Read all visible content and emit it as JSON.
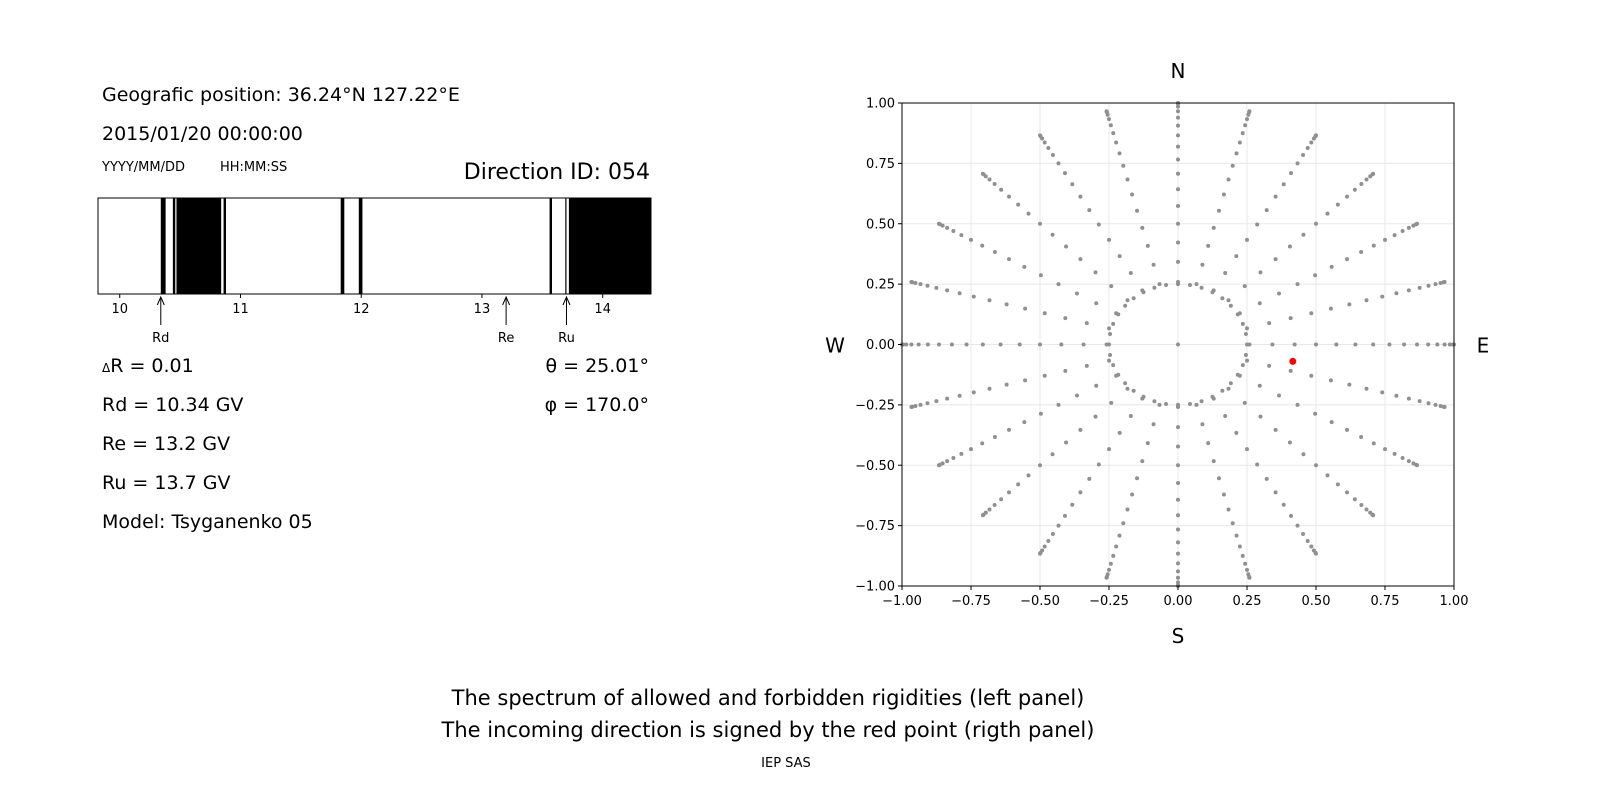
{
  "info": {
    "position": "Geografic position: 36.24°N 127.22°E",
    "datetime": "2015/01/20 00:00:00",
    "date_format": "YYYY/MM/DD",
    "time_format": "HH:MM:SS",
    "direction_id": "Direction ID: 054",
    "delta_r": "R = 0.01",
    "delta_symbol": "Δ",
    "rd": "Rd = 10.34 GV",
    "re": "Re = 13.2 GV",
    "ru": "Ru = 13.7 GV",
    "model": "Model: Tsyganenko 05",
    "theta": "θ = 25.01°",
    "phi": "φ = 170.0°"
  },
  "caption": {
    "line1": "The spectrum of allowed and forbidden rigidities (left panel)",
    "line2": "The incoming direction is signed by the red point (rigth panel)",
    "credit": "IEP SAS"
  },
  "chart_data": [
    {
      "type": "bar",
      "description_role": "rigidity spectrum",
      "xlim": [
        9.82,
        14.4
      ],
      "xticks": [
        10,
        11,
        12,
        13,
        14
      ],
      "forbidden_bands": [
        [
          10.34,
          10.38
        ],
        [
          10.44,
          10.46
        ],
        [
          10.47,
          10.84
        ],
        [
          10.86,
          10.88
        ],
        [
          11.83,
          11.86
        ],
        [
          11.98,
          12.01
        ],
        [
          13.56,
          13.58
        ],
        [
          13.69,
          13.7
        ],
        [
          13.72,
          14.4
        ]
      ],
      "markers": [
        {
          "label": "Rd",
          "value": 10.34
        },
        {
          "label": "Re",
          "value": 13.2
        },
        {
          "label": "Ru",
          "value": 13.7
        }
      ],
      "colors": {
        "forbidden": "#000000",
        "allowed": "#ffffff"
      }
    },
    {
      "type": "scatter",
      "description_role": "direction map",
      "xlim": [
        -1.0,
        1.0
      ],
      "ylim": [
        -1.0,
        1.0
      ],
      "xticks": [
        "−1.00",
        "−0.75",
        "−0.50",
        "−0.25",
        "0.00",
        "0.25",
        "0.50",
        "0.75",
        "1.00"
      ],
      "yticks": [
        "1.00",
        "0.75",
        "0.50",
        "0.25",
        "0.00",
        "−0.25",
        "−0.50",
        "−0.75",
        "−1.00"
      ],
      "tick_values": [
        -1.0,
        -0.75,
        -0.5,
        -0.25,
        0.0,
        0.25,
        0.5,
        0.75,
        1.0
      ],
      "grid": true,
      "compass": {
        "north": "N",
        "south": "S",
        "east": "E",
        "west": "W"
      },
      "grid_directions": {
        "zenith_angles_deg": [
          0,
          5,
          10,
          15,
          20,
          25,
          30,
          35,
          40,
          45,
          50,
          55,
          60,
          65,
          70,
          75,
          80,
          85,
          90
        ],
        "inner_circle_radius": 0.25,
        "inner_circle_azimuth_step_deg": 10,
        "outer_azimuth_step_deg": 15,
        "projection": "sin(zenith)"
      },
      "highlight_point": {
        "x": 0.416,
        "y": -0.07
      },
      "colors": {
        "grid_points": "#909090",
        "highlight": "#ff0000",
        "gridlines": "#e8e8e8"
      }
    }
  ]
}
